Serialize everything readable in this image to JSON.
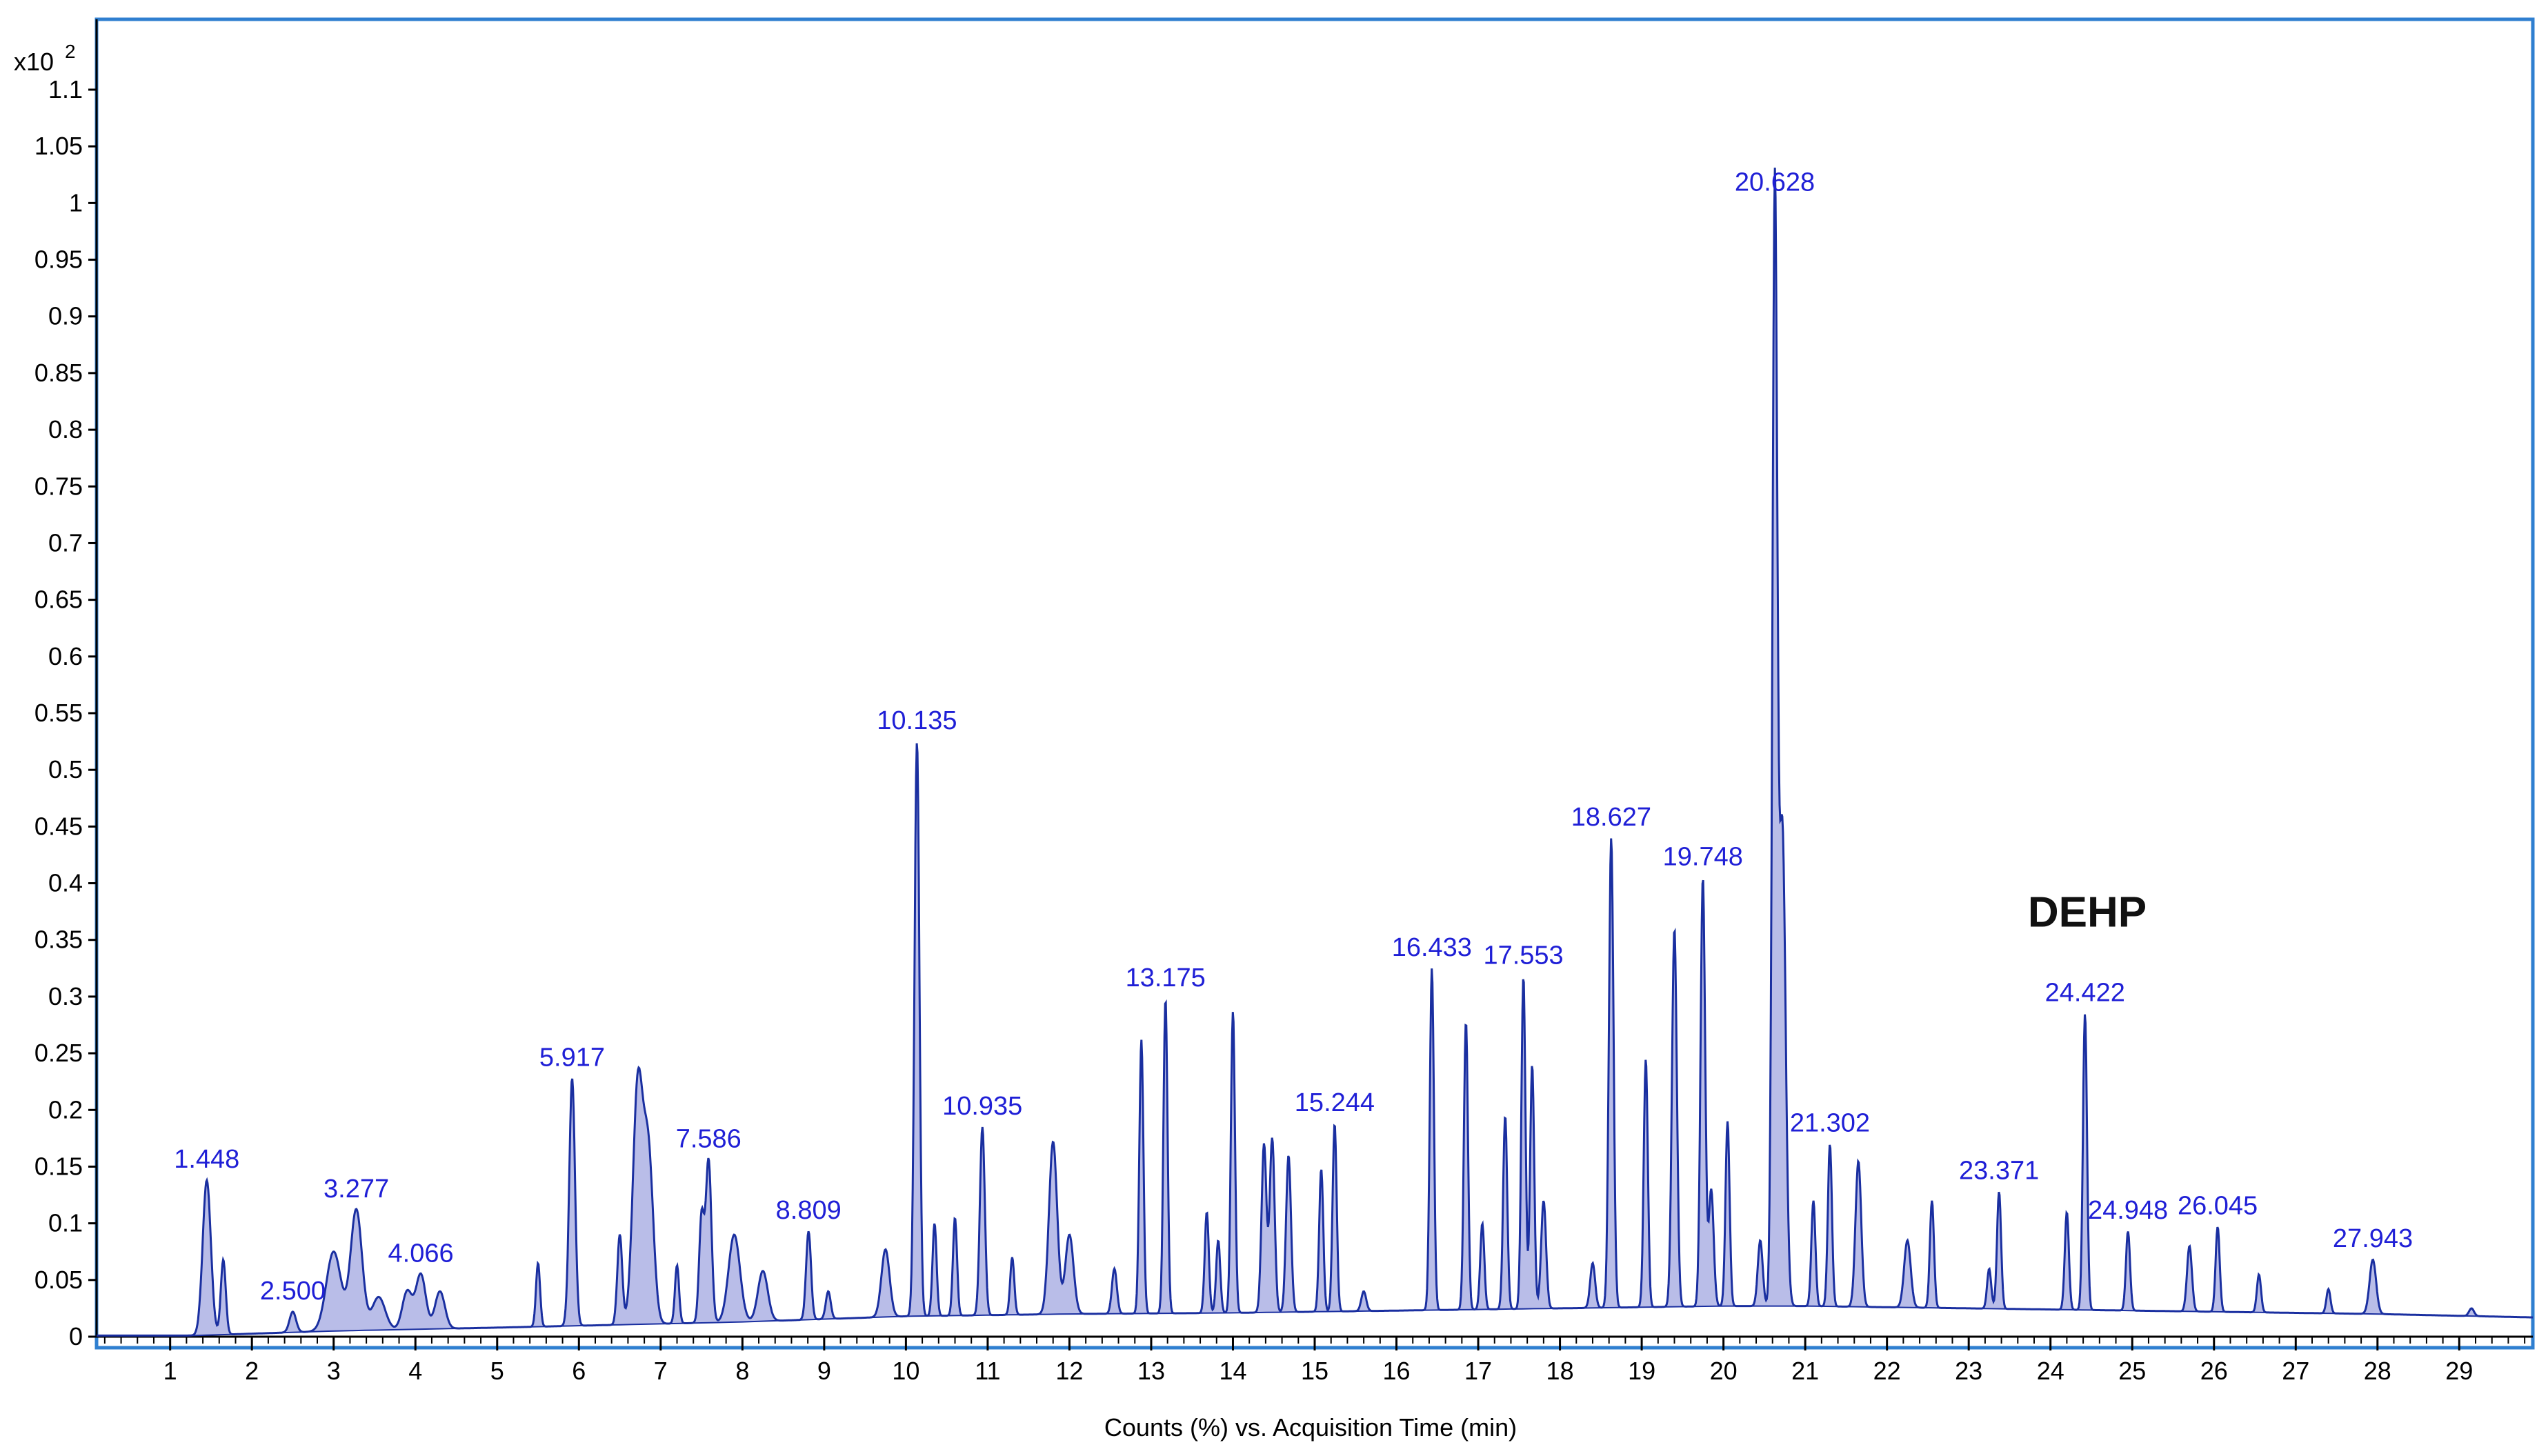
{
  "chart_data": {
    "type": "line",
    "title": "",
    "xlabel": "Counts (%) vs. Acquisition Time (min)",
    "ylabel": "",
    "y_multiplier_label": "x10",
    "y_multiplier_exp": "2",
    "xlim": [
      0.1,
      29.9
    ],
    "ylim": [
      0,
      1.1
    ],
    "x_ticks": [
      1,
      2,
      3,
      4,
      5,
      6,
      7,
      8,
      9,
      10,
      11,
      12,
      13,
      14,
      15,
      16,
      17,
      18,
      19,
      20,
      21,
      22,
      23,
      24,
      25,
      26,
      27,
      28,
      29
    ],
    "y_ticks": [
      0,
      0.05,
      0.1,
      0.15,
      0.2,
      0.25,
      0.3,
      0.35,
      0.4,
      0.45,
      0.5,
      0.55,
      0.6,
      0.65,
      0.7,
      0.75,
      0.8,
      0.85,
      0.9,
      0.95,
      1,
      1.05,
      1.1
    ],
    "y_tick_labels": [
      "0",
      "0.05",
      "0.1",
      "0.15",
      "0.2",
      "0.25",
      "0.3",
      "0.35",
      "0.4",
      "0.45",
      "0.5",
      "0.55",
      "0.6",
      "0.65",
      "0.7",
      "0.75",
      "0.8",
      "0.85",
      "0.9",
      "0.95",
      "1",
      "1.05",
      "1.1"
    ],
    "line_color": "#1a2fa0",
    "fill_color": "#b9bde8",
    "label_color": "#1f1fd6",
    "frame_color": "#2f7fd0",
    "baseline": [
      [
        0.1,
        0.001
      ],
      [
        1.3,
        0.001
      ],
      [
        3,
        0.005
      ],
      [
        5,
        0.008
      ],
      [
        8,
        0.013
      ],
      [
        10,
        0.018
      ],
      [
        12,
        0.02
      ],
      [
        14,
        0.021
      ],
      [
        16,
        0.023
      ],
      [
        18,
        0.025
      ],
      [
        20,
        0.027
      ],
      [
        21,
        0.027
      ],
      [
        22,
        0.026
      ],
      [
        24,
        0.024
      ],
      [
        26,
        0.022
      ],
      [
        28,
        0.02
      ],
      [
        29.9,
        0.017
      ]
    ],
    "peaks": [
      {
        "t": 1.448,
        "h": 0.138,
        "w": 0.05,
        "label": "1.448"
      },
      {
        "t": 1.65,
        "h": 0.068,
        "w": 0.03
      },
      {
        "t": 2.5,
        "h": 0.022,
        "w": 0.04,
        "label": "2.500"
      },
      {
        "t": 3.0,
        "h": 0.075,
        "w": 0.09
      },
      {
        "t": 3.277,
        "h": 0.112,
        "w": 0.07,
        "label": "3.277"
      },
      {
        "t": 3.55,
        "h": 0.035,
        "w": 0.08
      },
      {
        "t": 3.9,
        "h": 0.04,
        "w": 0.06
      },
      {
        "t": 4.066,
        "h": 0.055,
        "w": 0.06,
        "label": "4.066"
      },
      {
        "t": 4.3,
        "h": 0.04,
        "w": 0.06
      },
      {
        "t": 5.5,
        "h": 0.065,
        "w": 0.025
      },
      {
        "t": 5.917,
        "h": 0.228,
        "w": 0.035,
        "label": "5.917"
      },
      {
        "t": 6.5,
        "h": 0.09,
        "w": 0.03
      },
      {
        "t": 6.72,
        "h": 0.22,
        "w": 0.06
      },
      {
        "t": 6.85,
        "h": 0.16,
        "w": 0.06
      },
      {
        "t": 7.2,
        "h": 0.063,
        "w": 0.025
      },
      {
        "t": 7.5,
        "h": 0.105,
        "w": 0.03
      },
      {
        "t": 7.586,
        "h": 0.156,
        "w": 0.035,
        "label": "7.586"
      },
      {
        "t": 7.9,
        "h": 0.09,
        "w": 0.07
      },
      {
        "t": 8.25,
        "h": 0.058,
        "w": 0.06
      },
      {
        "t": 8.809,
        "h": 0.093,
        "w": 0.03,
        "label": "8.809"
      },
      {
        "t": 9.05,
        "h": 0.04,
        "w": 0.03
      },
      {
        "t": 9.75,
        "h": 0.077,
        "w": 0.05
      },
      {
        "t": 10.135,
        "h": 0.525,
        "w": 0.03,
        "label": "10.135"
      },
      {
        "t": 10.35,
        "h": 0.1,
        "w": 0.025
      },
      {
        "t": 10.6,
        "h": 0.105,
        "w": 0.025
      },
      {
        "t": 10.935,
        "h": 0.185,
        "w": 0.03,
        "label": "10.935"
      },
      {
        "t": 11.3,
        "h": 0.07,
        "w": 0.025
      },
      {
        "t": 11.8,
        "h": 0.172,
        "w": 0.05
      },
      {
        "t": 12.0,
        "h": 0.09,
        "w": 0.05
      },
      {
        "t": 12.55,
        "h": 0.06,
        "w": 0.03
      },
      {
        "t": 12.88,
        "h": 0.262,
        "w": 0.025
      },
      {
        "t": 13.175,
        "h": 0.298,
        "w": 0.025,
        "label": "13.175"
      },
      {
        "t": 13.68,
        "h": 0.11,
        "w": 0.025
      },
      {
        "t": 13.82,
        "h": 0.085,
        "w": 0.025
      },
      {
        "t": 14.0,
        "h": 0.287,
        "w": 0.025
      },
      {
        "t": 14.38,
        "h": 0.17,
        "w": 0.03
      },
      {
        "t": 14.48,
        "h": 0.175,
        "w": 0.03
      },
      {
        "t": 14.68,
        "h": 0.16,
        "w": 0.03
      },
      {
        "t": 15.08,
        "h": 0.148,
        "w": 0.025
      },
      {
        "t": 15.244,
        "h": 0.188,
        "w": 0.025,
        "label": "15.244"
      },
      {
        "t": 15.6,
        "h": 0.04,
        "w": 0.03
      },
      {
        "t": 16.433,
        "h": 0.325,
        "w": 0.025,
        "label": "16.433"
      },
      {
        "t": 16.85,
        "h": 0.278,
        "w": 0.025
      },
      {
        "t": 17.05,
        "h": 0.1,
        "w": 0.025
      },
      {
        "t": 17.33,
        "h": 0.195,
        "w": 0.025
      },
      {
        "t": 17.553,
        "h": 0.318,
        "w": 0.025,
        "label": "17.553"
      },
      {
        "t": 17.66,
        "h": 0.24,
        "w": 0.025
      },
      {
        "t": 17.8,
        "h": 0.12,
        "w": 0.03
      },
      {
        "t": 18.4,
        "h": 0.065,
        "w": 0.03
      },
      {
        "t": 18.627,
        "h": 0.44,
        "w": 0.028,
        "label": "18.627"
      },
      {
        "t": 19.05,
        "h": 0.245,
        "w": 0.025
      },
      {
        "t": 19.4,
        "h": 0.36,
        "w": 0.03
      },
      {
        "t": 19.748,
        "h": 0.405,
        "w": 0.028,
        "label": "19.748"
      },
      {
        "t": 19.85,
        "h": 0.13,
        "w": 0.03
      },
      {
        "t": 20.05,
        "h": 0.19,
        "w": 0.025
      },
      {
        "t": 20.45,
        "h": 0.085,
        "w": 0.03
      },
      {
        "t": 20.628,
        "h": 1.0,
        "w": 0.03,
        "label": "20.628"
      },
      {
        "t": 20.72,
        "h": 0.45,
        "w": 0.04
      },
      {
        "t": 21.1,
        "h": 0.12,
        "w": 0.025
      },
      {
        "t": 21.302,
        "h": 0.17,
        "w": 0.025,
        "label": "21.302"
      },
      {
        "t": 21.65,
        "h": 0.155,
        "w": 0.035
      },
      {
        "t": 22.25,
        "h": 0.085,
        "w": 0.04
      },
      {
        "t": 22.55,
        "h": 0.12,
        "w": 0.025
      },
      {
        "t": 23.25,
        "h": 0.06,
        "w": 0.025
      },
      {
        "t": 23.371,
        "h": 0.128,
        "w": 0.025,
        "label": "23.371"
      },
      {
        "t": 24.2,
        "h": 0.11,
        "w": 0.025
      },
      {
        "t": 24.422,
        "h": 0.285,
        "w": 0.025,
        "label": "24.422"
      },
      {
        "t": 24.948,
        "h": 0.093,
        "w": 0.025,
        "label": "24.948"
      },
      {
        "t": 25.7,
        "h": 0.08,
        "w": 0.03
      },
      {
        "t": 26.045,
        "h": 0.097,
        "w": 0.025,
        "label": "26.045"
      },
      {
        "t": 26.55,
        "h": 0.055,
        "w": 0.025
      },
      {
        "t": 27.4,
        "h": 0.042,
        "w": 0.025
      },
      {
        "t": 27.943,
        "h": 0.068,
        "w": 0.04,
        "label": "27.943"
      },
      {
        "t": 29.15,
        "h": 0.025,
        "w": 0.03
      }
    ],
    "annotations": [
      {
        "text": "DEHP",
        "t": 24.45,
        "y": 0.375
      }
    ]
  }
}
